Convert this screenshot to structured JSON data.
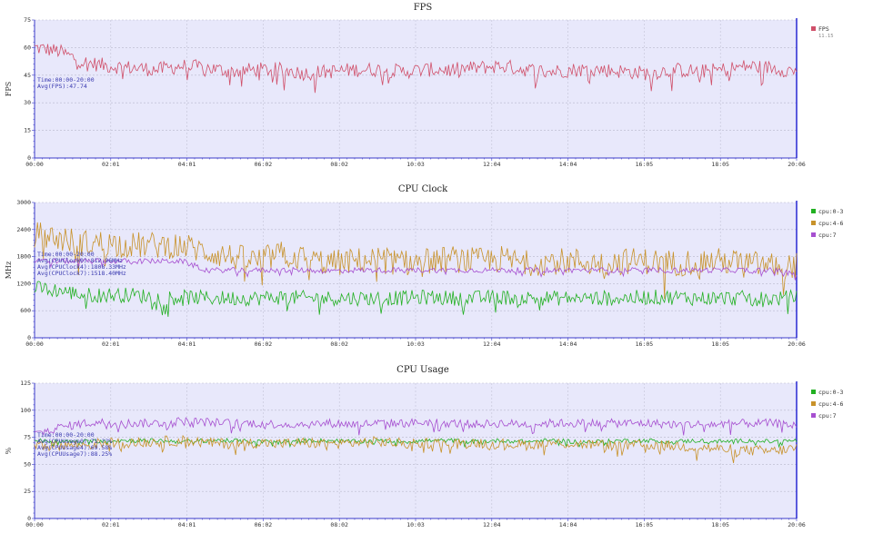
{
  "chart_data": [
    {
      "type": "line",
      "title": "FPS",
      "ylabel": "FPS",
      "ylim": [
        0,
        75
      ],
      "yticks": [
        0,
        15,
        30,
        45,
        60,
        75
      ],
      "xtick_labels": [
        "00:00",
        "02:01",
        "04:01",
        "06:02",
        "08:02",
        "10:03",
        "12:04",
        "14:04",
        "16:05",
        "18:05",
        "20:06"
      ],
      "annotations": [
        "Time:00:00-20:00",
        "Avg(FPS):47.74"
      ],
      "legend_position": "right",
      "series": [
        {
          "name": "FPS",
          "sub": "11.15",
          "color": "#d0506a",
          "profile": [
            60,
            58,
            52,
            50,
            49,
            48,
            50,
            49,
            47,
            48,
            48,
            46,
            47,
            48,
            48,
            47,
            48,
            48,
            49,
            50,
            48,
            47,
            48,
            48,
            47,
            46,
            48,
            47,
            48,
            50,
            49,
            47
          ],
          "noise": 4
        }
      ]
    },
    {
      "type": "line",
      "title": "CPU Clock",
      "ylabel": "MHz",
      "ylim": [
        0,
        3000
      ],
      "yticks": [
        0,
        600,
        1200,
        1800,
        2400,
        3000
      ],
      "xtick_labels": [
        "00:00",
        "02:01",
        "04:01",
        "06:02",
        "08:02",
        "10:03",
        "12:04",
        "14:04",
        "16:05",
        "18:05",
        "20:06"
      ],
      "annotations": [
        "Time:00:00-20:00",
        "Avg(CPUClock0):812.96MHz",
        "Avg(CPUClock4):1808.33MHz",
        "Avg(CPUClock7):1518.40MHz"
      ],
      "legend_position": "right",
      "series": [
        {
          "name": "cpu:0-3",
          "color": "#22b022",
          "profile": [
            1100,
            1050,
            950,
            950,
            950,
            900,
            900,
            880,
            880,
            880,
            900,
            880,
            880,
            880,
            880,
            880,
            900,
            880,
            880,
            900,
            880,
            880,
            880,
            880,
            880,
            900,
            900,
            880,
            880,
            880,
            860,
            900
          ],
          "noise": 170
        },
        {
          "name": "cpu:4-6",
          "color": "#c8922a",
          "profile": [
            2300,
            2200,
            2100,
            2100,
            2050,
            2050,
            2050,
            1900,
            1800,
            1700,
            1850,
            1750,
            1650,
            1700,
            1750,
            1650,
            1700,
            1750,
            1700,
            1750,
            1650,
            1700,
            1700,
            1650,
            1700,
            1700,
            1650,
            1700,
            1700,
            1650,
            1600,
            1600
          ],
          "noise": 300
        },
        {
          "name": "cpu:7",
          "color": "#a64fd0",
          "profile": [
            1700,
            1700,
            1700,
            1700,
            1700,
            1700,
            1700,
            1500,
            1500,
            1500,
            1500,
            1500,
            1480,
            1500,
            1500,
            1500,
            1500,
            1500,
            1500,
            1500,
            1500,
            1500,
            1500,
            1500,
            1500,
            1500,
            1500,
            1500,
            1500,
            1500,
            1500,
            1420
          ],
          "noise": 60
        }
      ]
    },
    {
      "type": "line",
      "title": "CPU Usage",
      "ylabel": "%",
      "ylim": [
        0,
        125
      ],
      "yticks": [
        0,
        25,
        50,
        75,
        100,
        125
      ],
      "xtick_labels": [
        "00:00",
        "02:01",
        "04:01",
        "06:02",
        "08:02",
        "10:03",
        "12:04",
        "14:04",
        "16:05",
        "18:05",
        "20:06"
      ],
      "annotations": [
        "Time:00:00-20:00",
        "Avg(CPUUsage0):71.??%",
        "Avg(CPUUsage4):69.58%",
        "Avg(CPUUsage7):88.25%"
      ],
      "legend_position": "right",
      "series": [
        {
          "name": "cpu:0-3",
          "color": "#22b022",
          "profile": [
            72,
            71,
            71,
            72,
            72,
            72,
            71,
            72,
            72,
            71,
            71,
            72,
            72,
            71,
            72,
            71,
            72,
            72,
            71,
            72,
            71,
            72,
            71,
            71,
            72,
            72,
            71,
            72,
            71,
            72,
            71,
            72
          ],
          "noise": 2
        },
        {
          "name": "cpu:4-6",
          "color": "#c8922a",
          "profile": [
            66,
            68,
            68,
            70,
            70,
            71,
            72,
            70,
            69,
            70,
            69,
            70,
            69,
            70,
            71,
            69,
            70,
            69,
            70,
            69,
            68,
            70,
            69,
            68,
            67,
            68,
            67,
            66,
            64,
            63,
            62,
            65
          ],
          "noise": 5
        },
        {
          "name": "cpu:7",
          "color": "#a64fd0",
          "profile": [
            78,
            84,
            88,
            89,
            88,
            88,
            90,
            89,
            88,
            88,
            87,
            87,
            88,
            87,
            88,
            88,
            89,
            88,
            87,
            88,
            87,
            88,
            88,
            88,
            88,
            88,
            87,
            87,
            87,
            88,
            88,
            86
          ],
          "noise": 4
        }
      ]
    }
  ]
}
